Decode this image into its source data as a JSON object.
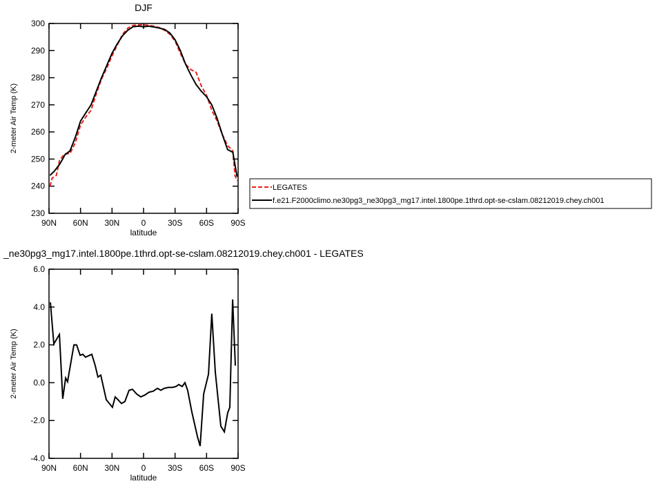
{
  "chart_data": [
    {
      "type": "line",
      "title": "DJF",
      "xlabel": "latitude",
      "ylabel": "2-meter Air Temp (K)",
      "xlim": [
        90,
        -90
      ],
      "xticks": [
        {
          "value": 90,
          "label": "90N"
        },
        {
          "value": 60,
          "label": "60N"
        },
        {
          "value": 30,
          "label": "30N"
        },
        0,
        {
          "value": -30,
          "label": "30S"
        },
        {
          "value": -60,
          "label": "60S"
        },
        {
          "value": -90,
          "label": "90S"
        }
      ],
      "ylim": [
        230,
        300
      ],
      "yticks": [
        230,
        240,
        250,
        260,
        270,
        280,
        290,
        300
      ],
      "legend": "right",
      "series": [
        {
          "name": "LEGATES",
          "color": "#e8211b",
          "dash": true,
          "x": [
            89,
            87,
            83,
            80,
            75,
            70,
            65,
            60,
            55,
            50,
            45,
            40,
            35,
            30,
            25,
            20,
            15,
            10,
            5,
            0,
            -5,
            -10,
            -15,
            -20,
            -25,
            -30,
            -35,
            -40,
            -45,
            -50,
            -55,
            -60,
            -65,
            -70,
            -75,
            -80,
            -85,
            -87,
            -89
          ],
          "values": [
            240,
            243,
            244,
            249.5,
            252,
            252,
            256,
            262.5,
            265.5,
            268,
            274,
            279.5,
            283.5,
            288,
            292,
            296,
            298.3,
            299.3,
            299.5,
            299.5,
            299.3,
            299,
            298.5,
            297.5,
            296,
            293.5,
            289,
            285,
            283,
            282,
            277,
            273.5,
            268,
            264,
            259,
            255,
            253,
            244,
            242
          ]
        },
        {
          "name": "f.e21.F2000climo.ne30pg3_ne30pg3_mg17.intel.1800pe.1thrd.opt-se-cslam.08212019.chey.ch001",
          "color": "#000000",
          "dash": false,
          "x": [
            89,
            85,
            80,
            77,
            75,
            70,
            65,
            60,
            55,
            50,
            45,
            40,
            35,
            30,
            25,
            20,
            15,
            10,
            5,
            0,
            -5,
            -10,
            -15,
            -20,
            -25,
            -30,
            -35,
            -40,
            -45,
            -50,
            -55,
            -60,
            -65,
            -70,
            -75,
            -80,
            -85,
            -89
          ],
          "values": [
            244,
            245.5,
            248,
            250,
            251.5,
            253,
            258,
            264,
            267,
            270,
            275,
            280,
            284.5,
            289,
            292.5,
            295.5,
            297.5,
            298.8,
            299,
            298.8,
            299,
            298.7,
            298.3,
            297.8,
            296.5,
            294,
            290,
            285,
            281,
            277.5,
            275,
            273,
            270,
            265,
            259,
            253.5,
            252.5,
            243.5
          ]
        }
      ]
    },
    {
      "type": "line",
      "title": "_ne30pg3_mg17.intel.1800pe.1thrd.opt-se-cslam.08212019.chey.ch001 - LEGATES",
      "xlabel": "latitude",
      "ylabel": "2-meter Air Temp (K)",
      "xlim": [
        90,
        -90
      ],
      "xticks": [
        {
          "value": 90,
          "label": "90N"
        },
        {
          "value": 60,
          "label": "60N"
        },
        {
          "value": 30,
          "label": "30N"
        },
        0,
        {
          "value": -30,
          "label": "30S"
        },
        {
          "value": -60,
          "label": "60S"
        },
        {
          "value": -90,
          "label": "90S"
        }
      ],
      "ylim": [
        -4,
        6
      ],
      "yticks": [
        {
          "value": -4,
          "label": "-4.0"
        },
        {
          "value": -2,
          "label": "-2.0"
        },
        {
          "value": 0,
          "label": "0.0"
        },
        {
          "value": 2,
          "label": "2.0"
        },
        {
          "value": 4,
          "label": "4.0"
        },
        {
          "value": 6,
          "label": "6.0"
        }
      ],
      "series": [
        {
          "color": "#000000",
          "dash": false,
          "x": [
            88.7,
            85.4,
            80.1,
            76.9,
            74.2,
            72.3,
            66.3,
            63.7,
            60.4,
            57.8,
            55.2,
            49.3,
            46,
            43.4,
            40.7,
            35.5,
            29.6,
            27,
            24.3,
            21,
            17.8,
            13.8,
            10.6,
            6.6,
            2.6,
            -1.3,
            -5.3,
            -9.2,
            -13.2,
            -16.4,
            -19.7,
            -23.7,
            -27.6,
            -30.9,
            -33.5,
            -36.8,
            -39.4,
            -42,
            -46,
            -51.3,
            -53.9,
            -57.2,
            -61.8,
            -65,
            -68.3,
            -73.6,
            -76.9,
            -80.1,
            -82.1,
            -84.8,
            -87.4
          ],
          "values": [
            4.25,
            2.05,
            2.55,
            -0.85,
            0.25,
            0.05,
            2.0,
            2.0,
            1.45,
            1.5,
            1.35,
            1.5,
            0.9,
            0.3,
            0.4,
            -0.9,
            -1.3,
            -0.75,
            -0.9,
            -1.1,
            -1.0,
            -0.4,
            -0.35,
            -0.6,
            -0.75,
            -0.65,
            -0.5,
            -0.45,
            -0.3,
            -0.4,
            -0.3,
            -0.25,
            -0.25,
            -0.2,
            -0.1,
            -0.2,
            0,
            -0.4,
            -1.55,
            -2.85,
            -3.35,
            -0.6,
            0.45,
            3.65,
            0.55,
            -2.3,
            -2.6,
            -1.6,
            -1.3,
            4.4,
            0.9
          ]
        }
      ]
    }
  ]
}
